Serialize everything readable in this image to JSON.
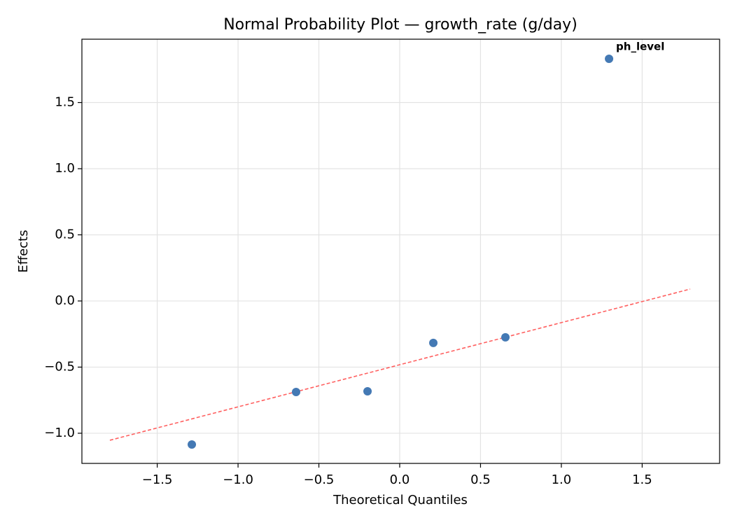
{
  "chart_data": {
    "type": "scatter",
    "title": "Normal Probability Plot — growth_rate (g/day)",
    "x_label": "Theoretical Quantiles",
    "y_label": "Effects",
    "x": [
      -1.286,
      -0.641,
      -0.199,
      0.208,
      0.654,
      1.295
    ],
    "values": [
      -1.085,
      -0.688,
      -0.683,
      -0.317,
      -0.275,
      1.831
    ],
    "color": "#4479b4",
    "reference_line": {
      "x": [
        -1.793,
        1.797
      ],
      "values": [
        -1.053,
        0.09
      ],
      "color": "#ff6060",
      "dashed": true
    },
    "annotations": [
      {
        "text": "ph_level",
        "x": 1.295,
        "y": 1.831,
        "color": "#ff0000"
      }
    ],
    "xlim": [
      -1.966,
      1.979
    ],
    "ylim": [
      -1.228,
      1.979
    ],
    "xticks": [
      {
        "value": -1.5,
        "label": "−1.5"
      },
      {
        "value": -1.0,
        "label": "−1.0"
      },
      {
        "value": -0.5,
        "label": "−0.5"
      },
      {
        "value": 0,
        "label": "0.0"
      },
      0.5,
      {
        "value": 1.0,
        "label": "1.0"
      },
      1.5
    ],
    "yticks": [
      {
        "value": -1.0,
        "label": "−1.0"
      },
      {
        "value": -0.5,
        "label": "−0.5"
      },
      {
        "value": 0,
        "label": "0.0"
      },
      0.5,
      {
        "value": 1.0,
        "label": "1.0"
      },
      1.5
    ],
    "grid": true
  }
}
